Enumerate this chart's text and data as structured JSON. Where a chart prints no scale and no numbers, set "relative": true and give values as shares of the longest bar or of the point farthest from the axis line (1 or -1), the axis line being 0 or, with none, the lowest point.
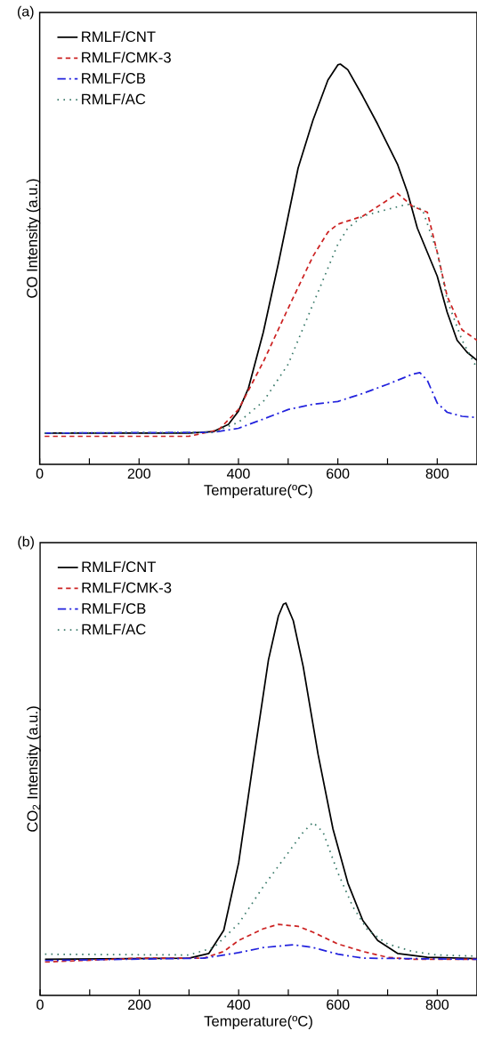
{
  "chart_data": [
    {
      "type": "line",
      "title": "(a)",
      "xlabel": "Temperature(ºC)",
      "ylabel": "CO Intensity (a.u.)",
      "relative": true,
      "legend": "top left",
      "xlim": [
        0,
        880
      ],
      "xticks": [
        0,
        {
          "value": 100,
          "label": null
        },
        200,
        {
          "value": 300,
          "label": null
        },
        400,
        {
          "value": 500,
          "label": null
        },
        600,
        {
          "value": 700,
          "label": null
        },
        800
      ],
      "series": [
        {
          "name": "RMLF/CNT",
          "color": "#000000",
          "line_style": "solid",
          "x": [
            10,
            300,
            350,
            380,
            400,
            420,
            450,
            480,
            500,
            520,
            550,
            580,
            600,
            605,
            620,
            650,
            680,
            700,
            720,
            740,
            760,
            780,
            800,
            820,
            840,
            860,
            880
          ],
          "values": [
            0.078,
            0.078,
            0.082,
            0.1,
            0.133,
            0.19,
            0.33,
            0.5,
            0.62,
            0.74,
            0.86,
            0.96,
            0.998,
            1.0,
            0.986,
            0.92,
            0.85,
            0.8,
            0.75,
            0.68,
            0.59,
            0.53,
            0.47,
            0.38,
            0.31,
            0.28,
            0.26
          ]
        },
        {
          "name": "RMLF/CMK-3",
          "color": "#cc2222",
          "line_style": "dashed",
          "x": [
            10,
            300,
            360,
            400,
            450,
            500,
            550,
            580,
            600,
            650,
            700,
            720,
            750,
            780,
            800,
            820,
            850,
            880
          ],
          "values": [
            0.07,
            0.07,
            0.086,
            0.137,
            0.256,
            0.39,
            0.52,
            0.58,
            0.6,
            0.62,
            0.66,
            0.677,
            0.645,
            0.63,
            0.53,
            0.42,
            0.336,
            0.31
          ]
        },
        {
          "name": "RMLF/CB",
          "color": "#2222dd",
          "line_style": "dashdot",
          "x": [
            10,
            350,
            400,
            450,
            500,
            550,
            600,
            650,
            700,
            750,
            765,
            780,
            800,
            820,
            850,
            880
          ],
          "values": [
            0.078,
            0.08,
            0.09,
            0.113,
            0.137,
            0.15,
            0.157,
            0.177,
            0.2,
            0.225,
            0.229,
            0.21,
            0.153,
            0.13,
            0.12,
            0.117
          ]
        },
        {
          "name": "RMLF/AC",
          "color": "#3a7a6a",
          "line_style": "dotted",
          "x": [
            10,
            350,
            400,
            450,
            500,
            550,
            580,
            600,
            620,
            650,
            700,
            740,
            770,
            800,
            820,
            850,
            880
          ],
          "values": [
            0.078,
            0.08,
            0.105,
            0.157,
            0.25,
            0.4,
            0.49,
            0.55,
            0.59,
            0.62,
            0.637,
            0.65,
            0.637,
            0.53,
            0.41,
            0.31,
            0.24
          ]
        }
      ]
    },
    {
      "type": "line",
      "title": "(b)",
      "xlabel": "Temperature(ºC)",
      "ylabel": "CO$_{2}$ Intensity (a.u.)",
      "relative": true,
      "legend": "top left",
      "xlim": [
        0,
        880
      ],
      "xticks": [
        0,
        {
          "value": 100,
          "label": null
        },
        200,
        {
          "value": 300,
          "label": null
        },
        400,
        {
          "value": 500,
          "label": null
        },
        600,
        {
          "value": 700,
          "label": null
        },
        800
      ],
      "series": [
        {
          "name": "RMLF/CNT",
          "color": "#000000",
          "line_style": "solid",
          "x": [
            10,
            300,
            340,
            370,
            400,
            430,
            460,
            480,
            490,
            495,
            510,
            530,
            560,
            590,
            620,
            650,
            680,
            720,
            780,
            880
          ],
          "values": [
            0.092,
            0.095,
            0.107,
            0.166,
            0.338,
            0.6,
            0.855,
            0.967,
            0.997,
            1.0,
            0.955,
            0.838,
            0.614,
            0.424,
            0.286,
            0.191,
            0.14,
            0.107,
            0.097,
            0.094
          ]
        },
        {
          "name": "RMLF/CMK-3",
          "color": "#cc2222",
          "line_style": "dashed",
          "x": [
            10,
            200,
            330,
            370,
            400,
            450,
            480,
            520,
            550,
            600,
            650,
            700,
            750,
            880
          ],
          "values": [
            0.085,
            0.095,
            0.095,
            0.112,
            0.14,
            0.17,
            0.181,
            0.176,
            0.161,
            0.131,
            0.112,
            0.097,
            0.092,
            0.092
          ]
        },
        {
          "name": "RMLF/CB",
          "color": "#2222dd",
          "line_style": "dashdot",
          "x": [
            10,
            330,
            400,
            450,
            510,
            550,
            600,
            650,
            880
          ],
          "values": [
            0.089,
            0.095,
            0.109,
            0.122,
            0.129,
            0.122,
            0.105,
            0.095,
            0.092
          ]
        },
        {
          "name": "RMLF/AC",
          "color": "#3a7a6a",
          "line_style": "dotted",
          "x": [
            10,
            300,
            350,
            400,
            450,
            500,
            530,
            550,
            570,
            600,
            630,
            660,
            700,
            750,
            800,
            880
          ],
          "values": [
            0.105,
            0.103,
            0.122,
            0.183,
            0.278,
            0.364,
            0.416,
            0.441,
            0.416,
            0.312,
            0.226,
            0.166,
            0.131,
            0.112,
            0.103,
            0.1
          ]
        }
      ]
    }
  ]
}
